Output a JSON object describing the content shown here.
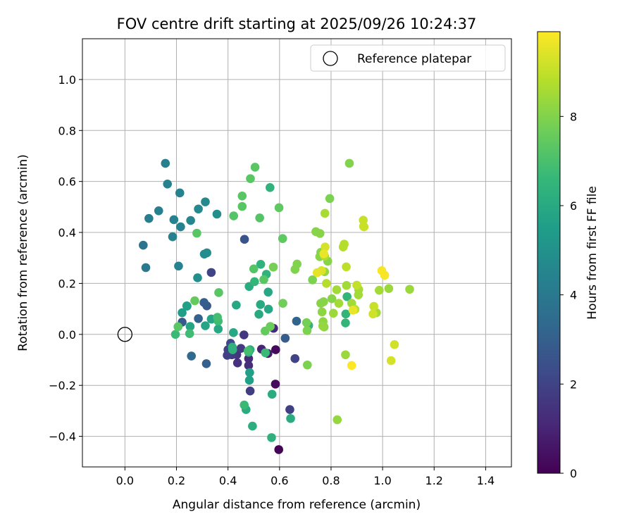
{
  "chart_data": {
    "type": "scatter",
    "title": "FOV centre drift starting at 2025/09/26 10:24:37",
    "xlabel": "Angular distance from reference (arcmin)",
    "ylabel": "Rotation from reference (arcmin)",
    "xlim": [
      -0.165,
      1.5
    ],
    "ylim": [
      -0.52,
      1.16
    ],
    "xticks": [
      0.0,
      0.2,
      0.4,
      0.6,
      0.8,
      1.0,
      1.2,
      1.4
    ],
    "xtick_labels": [
      "0.0",
      "0.2",
      "0.4",
      "0.6",
      "0.8",
      "1.0",
      "1.2",
      "1.4"
    ],
    "yticks": [
      -0.4,
      -0.2,
      0.0,
      0.2,
      0.4,
      0.6,
      0.8,
      1.0
    ],
    "ytick_labels": [
      "−0.4",
      "−0.2",
      "0.0",
      "0.2",
      "0.4",
      "0.6",
      "0.8",
      "1.0"
    ],
    "grid": true,
    "colormap": "viridis",
    "colorbar": {
      "label": "Hours from first FF file",
      "range": [
        0,
        9.9
      ],
      "ticks": [
        0,
        2,
        4,
        6,
        8
      ],
      "tick_labels": [
        "0",
        "2",
        "4",
        "6",
        "8"
      ]
    },
    "reference_point": {
      "label": "Reference platepar",
      "x": 0.0,
      "y": 0.0,
      "marker": "open-circle"
    },
    "legend": {
      "location": "top-right",
      "entries": [
        "Reference platepar"
      ]
    },
    "series": [
      {
        "points": [
          {
            "x": 0.597,
            "y": -0.452,
            "h": 0.1
          },
          {
            "x": 0.585,
            "y": -0.06,
            "h": 0.2
          },
          {
            "x": 0.584,
            "y": -0.195,
            "h": 0.3
          },
          {
            "x": 0.555,
            "y": -0.075,
            "h": 0.8
          },
          {
            "x": 0.53,
            "y": -0.058,
            "h": 1.0
          },
          {
            "x": 0.577,
            "y": 0.024,
            "h": 1.1
          },
          {
            "x": 0.48,
            "y": -0.095,
            "h": 1.2
          },
          {
            "x": 0.48,
            "y": -0.122,
            "h": 1.3
          },
          {
            "x": 0.437,
            "y": -0.112,
            "h": 1.4
          },
          {
            "x": 0.434,
            "y": -0.08,
            "h": 1.5
          },
          {
            "x": 0.462,
            "y": -0.002,
            "h": 1.6
          },
          {
            "x": 0.45,
            "y": -0.055,
            "h": 1.7
          },
          {
            "x": 0.486,
            "y": -0.222,
            "h": 1.8
          },
          {
            "x": 0.64,
            "y": -0.295,
            "h": 1.9
          },
          {
            "x": 0.66,
            "y": -0.095,
            "h": 2.0
          },
          {
            "x": 0.415,
            "y": -0.08,
            "h": 1.8
          },
          {
            "x": 0.397,
            "y": -0.082,
            "h": 1.9
          },
          {
            "x": 0.4,
            "y": -0.06,
            "h": 2.0
          },
          {
            "x": 0.41,
            "y": -0.035,
            "h": 2.2
          },
          {
            "x": 0.335,
            "y": 0.243,
            "h": 2.0
          },
          {
            "x": 0.464,
            "y": 0.373,
            "h": 2.6
          },
          {
            "x": 0.622,
            "y": -0.015,
            "h": 2.9
          },
          {
            "x": 0.666,
            "y": 0.052,
            "h": 3.2
          },
          {
            "x": 0.318,
            "y": 0.112,
            "h": 2.8
          },
          {
            "x": 0.307,
            "y": 0.125,
            "h": 2.9
          },
          {
            "x": 0.316,
            "y": -0.115,
            "h": 3.0
          },
          {
            "x": 0.285,
            "y": 0.062,
            "h": 3.1
          },
          {
            "x": 0.222,
            "y": 0.048,
            "h": 2.8
          },
          {
            "x": 0.258,
            "y": -0.085,
            "h": 3.4
          },
          {
            "x": 0.336,
            "y": 0.06,
            "h": 3.6
          },
          {
            "x": 0.071,
            "y": 0.35,
            "h": 3.8
          },
          {
            "x": 0.081,
            "y": 0.262,
            "h": 4.0
          },
          {
            "x": 0.093,
            "y": 0.455,
            "h": 4.2
          },
          {
            "x": 0.131,
            "y": 0.485,
            "h": 4.3
          },
          {
            "x": 0.157,
            "y": 0.671,
            "h": 4.3
          },
          {
            "x": 0.165,
            "y": 0.59,
            "h": 4.4
          },
          {
            "x": 0.185,
            "y": 0.383,
            "h": 4.4
          },
          {
            "x": 0.19,
            "y": 0.45,
            "h": 4.4
          },
          {
            "x": 0.213,
            "y": 0.555,
            "h": 4.4
          },
          {
            "x": 0.208,
            "y": 0.268,
            "h": 4.4
          },
          {
            "x": 0.216,
            "y": 0.422,
            "h": 4.4
          },
          {
            "x": 0.255,
            "y": 0.447,
            "h": 4.6
          },
          {
            "x": 0.285,
            "y": 0.492,
            "h": 4.7
          },
          {
            "x": 0.312,
            "y": 0.52,
            "h": 4.7
          },
          {
            "x": 0.308,
            "y": 0.315,
            "h": 4.8
          },
          {
            "x": 0.318,
            "y": 0.32,
            "h": 4.8
          },
          {
            "x": 0.282,
            "y": 0.222,
            "h": 4.9
          },
          {
            "x": 0.357,
            "y": 0.472,
            "h": 4.9
          },
          {
            "x": 0.241,
            "y": 0.111,
            "h": 5.3
          },
          {
            "x": 0.222,
            "y": 0.085,
            "h": 5.5
          },
          {
            "x": 0.24,
            "y": 0.112,
            "h": 5.6
          },
          {
            "x": 0.253,
            "y": 0.031,
            "h": 5.8
          },
          {
            "x": 0.312,
            "y": 0.034,
            "h": 5.8
          },
          {
            "x": 0.335,
            "y": 0.06,
            "h": 5.8
          },
          {
            "x": 0.362,
            "y": 0.021,
            "h": 5.9
          },
          {
            "x": 0.483,
            "y": -0.18,
            "h": 5.6
          },
          {
            "x": 0.484,
            "y": -0.15,
            "h": 5.6
          },
          {
            "x": 0.432,
            "y": 0.115,
            "h": 5.9
          },
          {
            "x": 0.421,
            "y": 0.007,
            "h": 5.9
          },
          {
            "x": 0.557,
            "y": 0.099,
            "h": 5.9
          },
          {
            "x": 0.556,
            "y": 0.166,
            "h": 5.9
          },
          {
            "x": 0.47,
            "y": -0.295,
            "h": 6.1
          },
          {
            "x": 0.643,
            "y": -0.33,
            "h": 6.1
          },
          {
            "x": 0.571,
            "y": -0.235,
            "h": 6.1
          },
          {
            "x": 0.495,
            "y": -0.36,
            "h": 6.2
          },
          {
            "x": 0.569,
            "y": -0.405,
            "h": 6.3
          },
          {
            "x": 0.52,
            "y": 0.079,
            "h": 6.0
          },
          {
            "x": 0.526,
            "y": 0.117,
            "h": 6.0
          },
          {
            "x": 0.482,
            "y": 0.188,
            "h": 6.1
          },
          {
            "x": 0.48,
            "y": -0.07,
            "h": 6.2
          },
          {
            "x": 0.486,
            "y": -0.06,
            "h": 6.3
          },
          {
            "x": 0.417,
            "y": -0.05,
            "h": 6.3
          },
          {
            "x": 0.418,
            "y": -0.06,
            "h": 6.4
          },
          {
            "x": 0.527,
            "y": 0.275,
            "h": 6.4
          },
          {
            "x": 0.549,
            "y": 0.236,
            "h": 6.4
          },
          {
            "x": 0.503,
            "y": 0.207,
            "h": 6.5
          },
          {
            "x": 0.563,
            "y": 0.576,
            "h": 6.4
          },
          {
            "x": 0.713,
            "y": 0.035,
            "h": 6.4
          },
          {
            "x": 0.856,
            "y": 0.045,
            "h": 6.5
          },
          {
            "x": 0.857,
            "y": 0.08,
            "h": 6.5
          },
          {
            "x": 0.862,
            "y": 0.148,
            "h": 6.5
          },
          {
            "x": 0.463,
            "y": -0.277,
            "h": 6.7
          },
          {
            "x": 0.545,
            "y": -0.072,
            "h": 6.7
          },
          {
            "x": 0.196,
            "y": 0.0,
            "h": 6.7
          },
          {
            "x": 0.251,
            "y": 0.003,
            "h": 6.8
          },
          {
            "x": 0.362,
            "y": 0.052,
            "h": 6.8
          },
          {
            "x": 0.359,
            "y": 0.067,
            "h": 6.9
          },
          {
            "x": 0.478,
            "y": -0.065,
            "h": 6.9
          },
          {
            "x": 0.206,
            "y": 0.03,
            "h": 7.3
          },
          {
            "x": 0.271,
            "y": 0.132,
            "h": 7.5
          },
          {
            "x": 0.279,
            "y": 0.397,
            "h": 7.3
          },
          {
            "x": 0.364,
            "y": 0.164,
            "h": 7.3
          },
          {
            "x": 0.422,
            "y": 0.465,
            "h": 7.2
          },
          {
            "x": 0.505,
            "y": 0.656,
            "h": 7.3
          },
          {
            "x": 0.487,
            "y": 0.611,
            "h": 7.3
          },
          {
            "x": 0.455,
            "y": 0.543,
            "h": 7.3
          },
          {
            "x": 0.455,
            "y": 0.502,
            "h": 7.3
          },
          {
            "x": 0.523,
            "y": 0.457,
            "h": 7.2
          },
          {
            "x": 0.598,
            "y": 0.497,
            "h": 7.4
          },
          {
            "x": 0.612,
            "y": 0.376,
            "h": 7.4
          },
          {
            "x": 0.613,
            "y": 0.122,
            "h": 7.7
          },
          {
            "x": 0.576,
            "y": 0.264,
            "h": 7.8
          },
          {
            "x": 0.5,
            "y": 0.257,
            "h": 7.2
          },
          {
            "x": 0.539,
            "y": 0.215,
            "h": 7.3
          },
          {
            "x": 0.544,
            "y": 0.013,
            "h": 7.5
          },
          {
            "x": 0.564,
            "y": 0.031,
            "h": 7.6
          },
          {
            "x": 0.705,
            "y": 0.046,
            "h": 7.8
          },
          {
            "x": 0.707,
            "y": 0.015,
            "h": 7.9
          },
          {
            "x": 0.708,
            "y": -0.12,
            "h": 7.9
          },
          {
            "x": 0.728,
            "y": 0.214,
            "h": 7.9
          },
          {
            "x": 0.668,
            "y": 0.276,
            "h": 8.0
          },
          {
            "x": 0.66,
            "y": 0.255,
            "h": 8.0
          },
          {
            "x": 0.741,
            "y": 0.403,
            "h": 8.1
          },
          {
            "x": 0.757,
            "y": 0.396,
            "h": 8.1
          },
          {
            "x": 0.795,
            "y": 0.533,
            "h": 7.9
          },
          {
            "x": 0.871,
            "y": 0.671,
            "h": 8.0
          },
          {
            "x": 0.756,
            "y": 0.305,
            "h": 8.1
          },
          {
            "x": 0.76,
            "y": 0.322,
            "h": 8.1
          },
          {
            "x": 0.787,
            "y": 0.287,
            "h": 8.1
          },
          {
            "x": 0.803,
            "y": 0.14,
            "h": 8.1
          },
          {
            "x": 0.76,
            "y": 0.122,
            "h": 8.1
          },
          {
            "x": 0.771,
            "y": 0.128,
            "h": 8.1
          },
          {
            "x": 0.769,
            "y": 0.05,
            "h": 8.2
          },
          {
            "x": 0.773,
            "y": 0.029,
            "h": 8.2
          },
          {
            "x": 0.768,
            "y": 0.033,
            "h": 8.3
          },
          {
            "x": 0.765,
            "y": 0.088,
            "h": 8.2
          },
          {
            "x": 0.775,
            "y": 0.246,
            "h": 8.3
          },
          {
            "x": 0.824,
            "y": -0.335,
            "h": 8.3
          },
          {
            "x": 0.856,
            "y": -0.08,
            "h": 8.4
          },
          {
            "x": 0.809,
            "y": 0.083,
            "h": 8.4
          },
          {
            "x": 0.822,
            "y": 0.175,
            "h": 8.5
          },
          {
            "x": 0.83,
            "y": 0.122,
            "h": 8.5
          },
          {
            "x": 0.86,
            "y": 0.192,
            "h": 8.5
          },
          {
            "x": 0.88,
            "y": 0.122,
            "h": 8.5
          },
          {
            "x": 0.907,
            "y": 0.176,
            "h": 8.5
          },
          {
            "x": 0.906,
            "y": 0.155,
            "h": 8.5
          },
          {
            "x": 0.976,
            "y": 0.085,
            "h": 8.5
          },
          {
            "x": 0.987,
            "y": 0.173,
            "h": 8.5
          },
          {
            "x": 1.024,
            "y": 0.18,
            "h": 8.4
          },
          {
            "x": 1.105,
            "y": 0.177,
            "h": 8.4
          },
          {
            "x": 0.776,
            "y": 0.475,
            "h": 8.6
          },
          {
            "x": 0.775,
            "y": 0.307,
            "h": 8.7
          },
          {
            "x": 0.782,
            "y": 0.2,
            "h": 8.8
          },
          {
            "x": 0.847,
            "y": 0.343,
            "h": 8.8
          },
          {
            "x": 0.851,
            "y": 0.354,
            "h": 8.8
          },
          {
            "x": 0.859,
            "y": 0.265,
            "h": 8.9
          },
          {
            "x": 0.893,
            "y": 0.098,
            "h": 8.9
          },
          {
            "x": 0.9,
            "y": 0.193,
            "h": 9.0
          },
          {
            "x": 0.925,
            "y": 0.448,
            "h": 9.1
          },
          {
            "x": 0.926,
            "y": 0.424,
            "h": 9.1
          },
          {
            "x": 0.928,
            "y": 0.422,
            "h": 9.1
          },
          {
            "x": 0.966,
            "y": 0.11,
            "h": 9.1
          },
          {
            "x": 0.963,
            "y": 0.08,
            "h": 9.2
          },
          {
            "x": 1.046,
            "y": -0.04,
            "h": 9.2
          },
          {
            "x": 1.033,
            "y": -0.103,
            "h": 9.3
          },
          {
            "x": 0.777,
            "y": 0.343,
            "h": 9.3
          },
          {
            "x": 0.763,
            "y": 0.25,
            "h": 9.4
          },
          {
            "x": 0.746,
            "y": 0.242,
            "h": 9.5
          },
          {
            "x": 0.772,
            "y": 0.316,
            "h": 9.6
          },
          {
            "x": 0.885,
            "y": 0.095,
            "h": 9.6
          },
          {
            "x": 0.997,
            "y": 0.25,
            "h": 9.8
          },
          {
            "x": 1.008,
            "y": 0.232,
            "h": 9.8
          },
          {
            "x": 0.88,
            "y": -0.122,
            "h": 9.9
          }
        ]
      }
    ]
  }
}
